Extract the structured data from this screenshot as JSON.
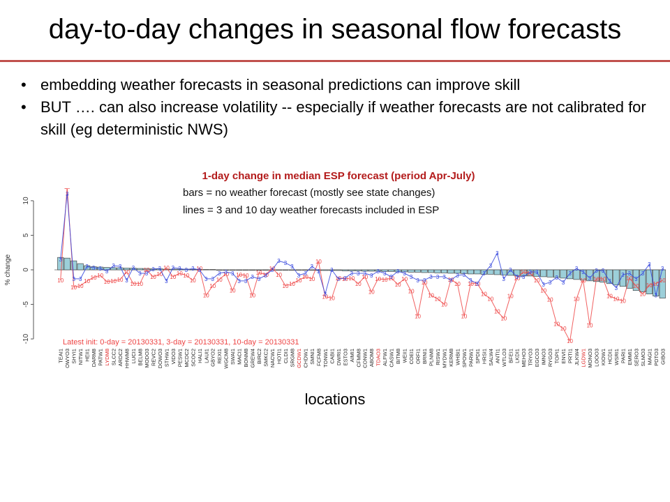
{
  "slide": {
    "title": "day-to-day changes in seasonal flow forecasts",
    "bullets": [
      "embedding weather forecasts in seasonal predictions can improve skill",
      "BUT …. can also increase volatility -- especially if weather forecasts are not calibrated for skill (eg deterministic NWS)"
    ]
  },
  "colors": {
    "accent": "#c0504d",
    "bars": "#9ccfd9",
    "line_3day": "#3344dd",
    "line_10day": "#ee4444",
    "highlight_label": "#e02020"
  },
  "chart_data": {
    "type": "bar",
    "title": "1-day change in median ESP forecast (period Apr-July)",
    "subtitles": [
      "bars = no weather forecast (mostly see state changes)",
      "lines = 3 and 10 day weather forecasts included in ESP"
    ],
    "ylabel": "% change",
    "xlabel": "locations",
    "ylim": [
      -11,
      11
    ],
    "yticks": [
      10,
      5,
      0,
      -5,
      -10
    ],
    "annotation": "Latest init:  0-day = 20130331, 3-day = 20130331, 10-day = 20130331",
    "categories": [
      "TEAI1",
      "OWYO3",
      "SHYI1",
      "NITW1",
      "HEII1",
      "DARM8",
      "PATW1",
      "LYDM8",
      "SLCC2",
      "ARDC2",
      "HHWM8",
      "LUCI1",
      "BELM8",
      "MODO3",
      "REVC2",
      "DOWO3",
      "STHW1",
      "VIDO3",
      "PESW1",
      "MCDC2",
      "SCOC2",
      "HALI1",
      "LAUI1",
      "GBYO2",
      "REXI1",
      "WGCM8",
      "SWAI1",
      "MACI1",
      "BONM8",
      "GREW4",
      "BIRC2",
      "SMKC2",
      "NACW1",
      "HOTI1",
      "CLDI1",
      "SRGM8",
      "GCDW1",
      "CHDW1",
      "SMNI1",
      "FCFM8",
      "TONW1",
      "CABI1",
      "DWRI1",
      "ESTO3",
      "AIMI1",
      "CFMM8",
      "CONW1",
      "ABOM8",
      "TDAO3",
      "ALFW1",
      "CASW1",
      "BITM8",
      "WEII1",
      "COEI1",
      "ORFI1",
      "BRNI1",
      "PLNM8",
      "RISW1",
      "MYDW1",
      "KERM8",
      "WHBI1",
      "SPOW1",
      "PARW1",
      "SPDI1",
      "HRSI1",
      "SALW4",
      "ANTI1",
      "WTLO3",
      "BFEI1",
      "LKDI1",
      "MEHO3",
      "TRYO3",
      "EGCO3",
      "IMNO3",
      "RYGO3",
      "TOPI1",
      "ENVI1",
      "PRTI1",
      "JLKW4",
      "LGDW1",
      "MONO3",
      "LOOO3",
      "KIOW1",
      "HCDI1",
      "WSRI1",
      "PARI1",
      "EMMI1",
      "SERO3",
      "SLMO3",
      "MAGI1",
      "PDTO3",
      "GIBO3"
    ],
    "highlighted_categories": [
      "LYDM8",
      "GCDW1",
      "TDAO3",
      "LGDW1"
    ],
    "series": [
      {
        "name": "bars",
        "kind": "bar",
        "values": [
          1.8,
          1.7,
          1.3,
          0.9,
          0.6,
          0.45,
          0.4,
          0.35,
          0.3,
          0.3,
          0.25,
          0.25,
          0.2,
          0.2,
          0.15,
          0.15,
          0.1,
          0.1,
          0.1,
          0.1,
          0.05,
          0.05,
          0.05,
          0.05,
          0,
          0,
          0,
          0,
          0,
          0,
          0,
          0,
          0,
          0,
          0,
          0,
          -0.05,
          -0.05,
          -0.05,
          -0.1,
          -0.1,
          -0.1,
          -0.1,
          -0.15,
          -0.15,
          -0.15,
          -0.2,
          -0.2,
          -0.2,
          -0.25,
          -0.25,
          -0.3,
          -0.3,
          -0.35,
          -0.35,
          -0.4,
          -0.4,
          -0.45,
          -0.45,
          -0.5,
          -0.5,
          -0.55,
          -0.6,
          -0.6,
          -0.65,
          -0.65,
          -0.7,
          -0.75,
          -0.8,
          -0.85,
          -0.9,
          -0.9,
          -0.95,
          -1.0,
          -1.05,
          -1.1,
          -1.2,
          -1.3,
          -1.4,
          -1.5,
          -1.6,
          -1.7,
          -1.8,
          -2.0,
          -2.2,
          -2.4,
          -2.7,
          -3.0,
          -3.2,
          -3.5,
          -3.8,
          -4.1
        ]
      },
      {
        "name": "3",
        "kind": "line",
        "values": [
          1.5,
          11.0,
          -1.3,
          -1.3,
          0.5,
          0.3,
          0.2,
          -0.2,
          0.6,
          0.5,
          -1.5,
          0.3,
          -0.5,
          -0.5,
          0.1,
          0.2,
          -1.6,
          0.3,
          0.2,
          0.0,
          0.2,
          0.0,
          -1.3,
          -1.3,
          -0.5,
          -0.3,
          -0.5,
          -1.6,
          -1.6,
          -1.0,
          -1.3,
          -0.8,
          0.0,
          1.3,
          1.0,
          0.5,
          -0.8,
          -0.5,
          0.5,
          -0.2,
          -3.5,
          0.0,
          -1.3,
          -1.2,
          -0.5,
          -0.5,
          -0.5,
          -0.8,
          -0.2,
          -0.5,
          -1.0,
          -0.2,
          -0.5,
          -1.0,
          -1.5,
          -1.5,
          -1.0,
          -1.0,
          -1.0,
          -1.5,
          -0.8,
          -0.7,
          -1.5,
          -2.0,
          -0.5,
          0.6,
          2.4,
          -1.3,
          0.0,
          -1.0,
          -1.0,
          -0.3,
          -0.3,
          -2.1,
          -1.8,
          -1.1,
          -1.8,
          -0.5,
          0.2,
          -0.3,
          -1.2,
          -0.1,
          -0.1,
          -1.6,
          -2.6,
          -0.7,
          -0.5,
          -1.3,
          -0.5,
          0.8,
          -3.7,
          0.2
        ]
      },
      {
        "name": "10",
        "kind": "line",
        "values": [
          -1.5,
          12.0,
          -2.5,
          -2.3,
          -1.6,
          -1.1,
          -0.8,
          -1.7,
          -1.6,
          -1.4,
          -0.3,
          -2.0,
          -2.0,
          0.0,
          -1.0,
          -0.6,
          0.3,
          -1.0,
          -0.5,
          -0.8,
          -1.5,
          0.2,
          -3.7,
          -2.3,
          -1.4,
          -0.6,
          -3.0,
          -0.7,
          -0.8,
          -3.7,
          -0.4,
          -0.7,
          0.2,
          -0.7,
          -2.3,
          -2.0,
          -1.5,
          -1.0,
          -1.3,
          1.2,
          -3.9,
          -4.1,
          -1.2,
          -1.3,
          -1.2,
          -2.0,
          -1.0,
          -3.2,
          -1.3,
          -1.4,
          -1.2,
          -2.1,
          -1.3,
          -3.1,
          -6.7,
          -1.8,
          -3.7,
          -4.2,
          -5.0,
          -1.4,
          -2.0,
          -6.7,
          -2.0,
          -2.0,
          -3.5,
          -4.2,
          -6.0,
          -7.0,
          -3.8,
          -1.2,
          -0.3,
          -0.5,
          -1.5,
          -3.0,
          -4.3,
          -7.8,
          -8.5,
          -10.3,
          -4.2,
          -1.5,
          -8.0,
          -1.3,
          -1.3,
          -3.8,
          -4.2,
          -4.5,
          -1.2,
          -2.3,
          -3.5,
          -2.2,
          -2.0,
          -1.5
        ]
      }
    ]
  },
  "axis_labels": {
    "x": "locations"
  }
}
